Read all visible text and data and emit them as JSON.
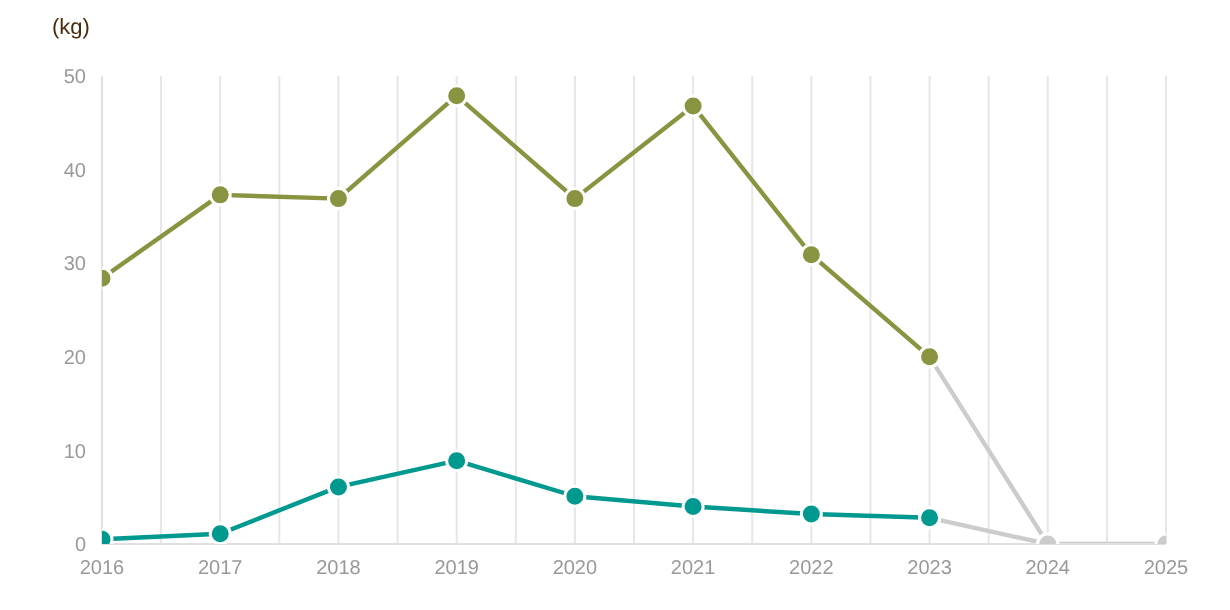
{
  "chart_data": {
    "type": "line",
    "ylabel": "(kg)",
    "xlim": [
      2016,
      2025
    ],
    "xticks": [
      2016,
      {
        "value": 2016.5,
        "label": null
      },
      2017,
      {
        "value": 2017.5,
        "label": null
      },
      2018,
      {
        "value": 2018.5,
        "label": null
      },
      2019,
      {
        "value": 2019.5,
        "label": null
      },
      2020,
      {
        "value": 2020.5,
        "label": null
      },
      2021,
      {
        "value": 2021.5,
        "label": null
      },
      2022,
      {
        "value": 2022.5,
        "label": null
      },
      2023,
      {
        "value": 2023.5,
        "label": null
      },
      2024,
      {
        "value": 2024.5,
        "label": null
      },
      2025
    ],
    "ylim": [
      0,
      50
    ],
    "yticks": [
      0,
      10,
      20,
      30,
      40,
      50
    ],
    "grid": "x",
    "marker": "circle",
    "series": [
      {
        "color": "#cccccc",
        "x": [
          2023,
          2024,
          2025
        ],
        "values": [
          20,
          0,
          0
        ]
      },
      {
        "color": "#cccccc",
        "x": [
          2023,
          2024
        ],
        "values": [
          2.8,
          0
        ]
      },
      {
        "color": "#8a9440",
        "x": [
          2016,
          2017,
          2018,
          2019,
          2020,
          2021,
          2022,
          2023
        ],
        "values": [
          28.4,
          37.3,
          36.9,
          47.9,
          36.9,
          46.8,
          30.9,
          20
        ]
      },
      {
        "color": "#009990",
        "x": [
          2016,
          2017,
          2018,
          2019,
          2020,
          2021,
          2022,
          2023
        ],
        "values": [
          0.5,
          1.1,
          6.1,
          8.9,
          5.1,
          4,
          3.2,
          2.8
        ]
      }
    ]
  }
}
